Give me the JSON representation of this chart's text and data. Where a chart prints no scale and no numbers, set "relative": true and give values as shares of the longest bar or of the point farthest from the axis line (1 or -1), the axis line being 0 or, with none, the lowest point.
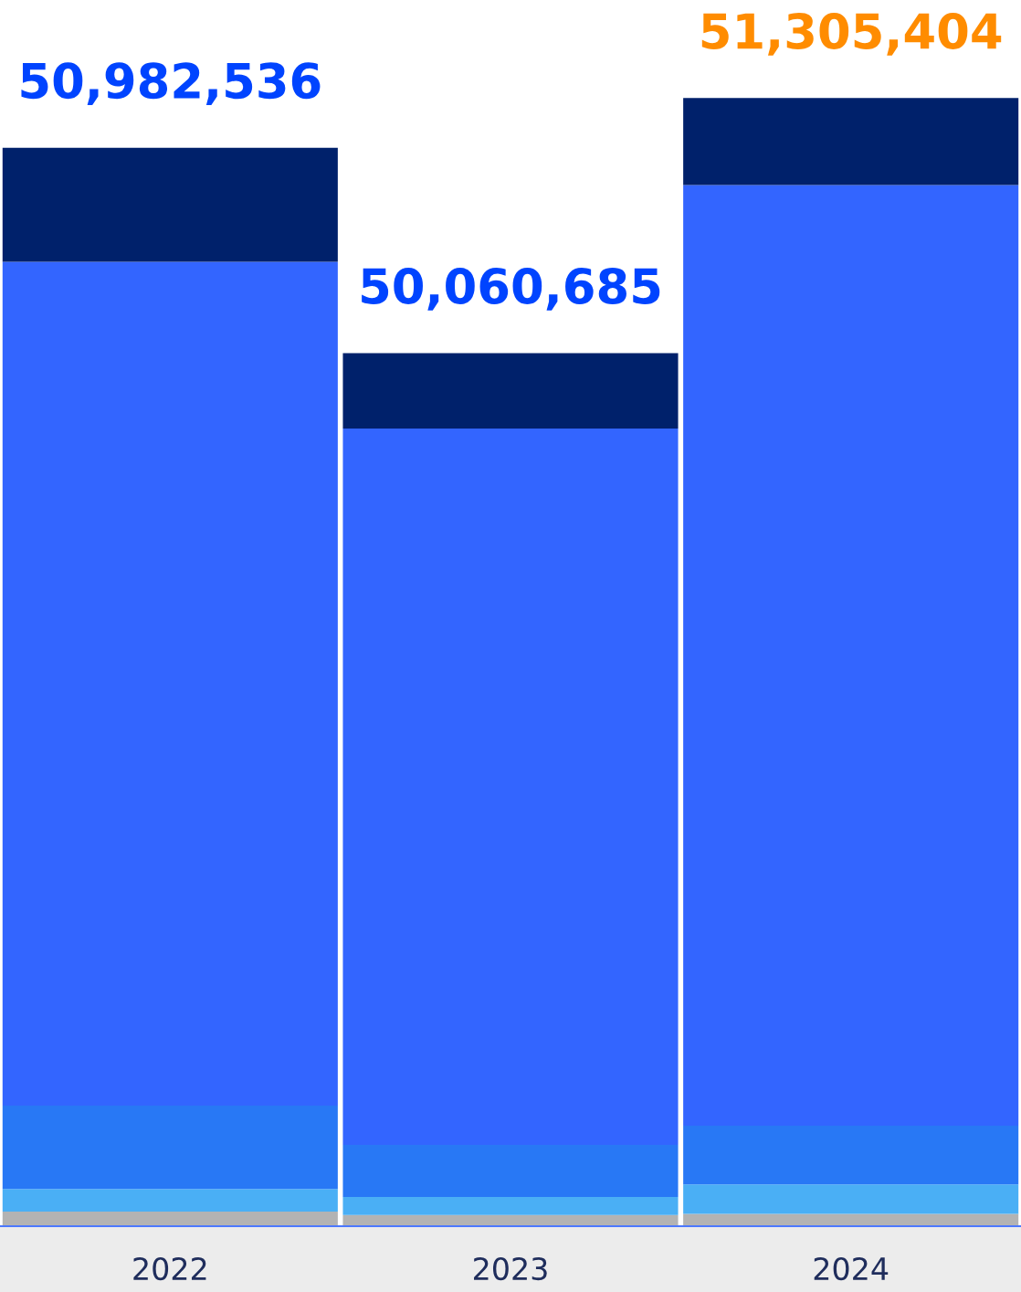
{
  "chart_data": {
    "type": "bar",
    "stacked": true,
    "relative": true,
    "categories": [
      "2022",
      "2023",
      "2024"
    ],
    "series": [
      {
        "color": "#b3b3b3",
        "values": [
          0.013,
          0.01,
          0.011
        ]
      },
      {
        "color": "#4aaff5",
        "values": [
          0.02,
          0.016,
          0.026
        ]
      },
      {
        "color": "#2878f5",
        "values": [
          0.074,
          0.046,
          0.052
        ]
      },
      {
        "color": "#3365ff",
        "values": [
          0.748,
          0.635,
          0.834
        ]
      },
      {
        "color": "#00216b",
        "values": [
          0.101,
          0.067,
          0.077
        ]
      }
    ],
    "annotations": [
      {
        "text": "50,982,536",
        "x": "2022",
        "y": 0.956
      },
      {
        "text": "50,060,685",
        "x": "2023",
        "y": 0.774
      },
      {
        "text": "51,305,404",
        "x": "2024",
        "y": 1.0
      }
    ],
    "grid": false,
    "legend": false
  }
}
